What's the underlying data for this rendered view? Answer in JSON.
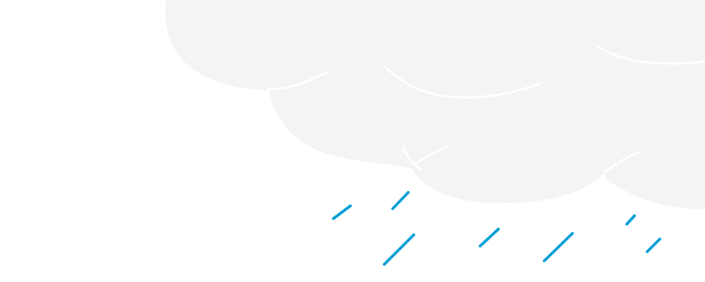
{
  "scene": {
    "description_icon": "rain-cloud-icon",
    "colors": {
      "background": "#ffffff",
      "cloud": "#f4f4f4",
      "cloud_outline": "#ffffff",
      "rain": "#0aa0d8"
    }
  }
}
